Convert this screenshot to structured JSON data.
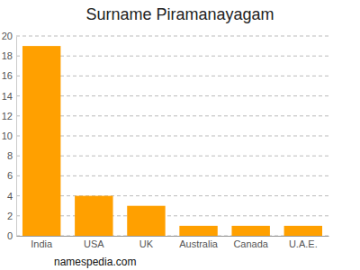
{
  "chart_data": {
    "type": "bar",
    "title": "Surname Piramanayagam",
    "categories": [
      "India",
      "USA",
      "UK",
      "Australia",
      "Canada",
      "U.A.E."
    ],
    "values": [
      19,
      4,
      3,
      1,
      1,
      1
    ],
    "color": "#ffa000",
    "ylim": [
      0,
      20
    ],
    "yticks": [
      0,
      2,
      4,
      6,
      8,
      10,
      12,
      14,
      16,
      18,
      20
    ],
    "grid": true,
    "source": "namespedia.com"
  }
}
